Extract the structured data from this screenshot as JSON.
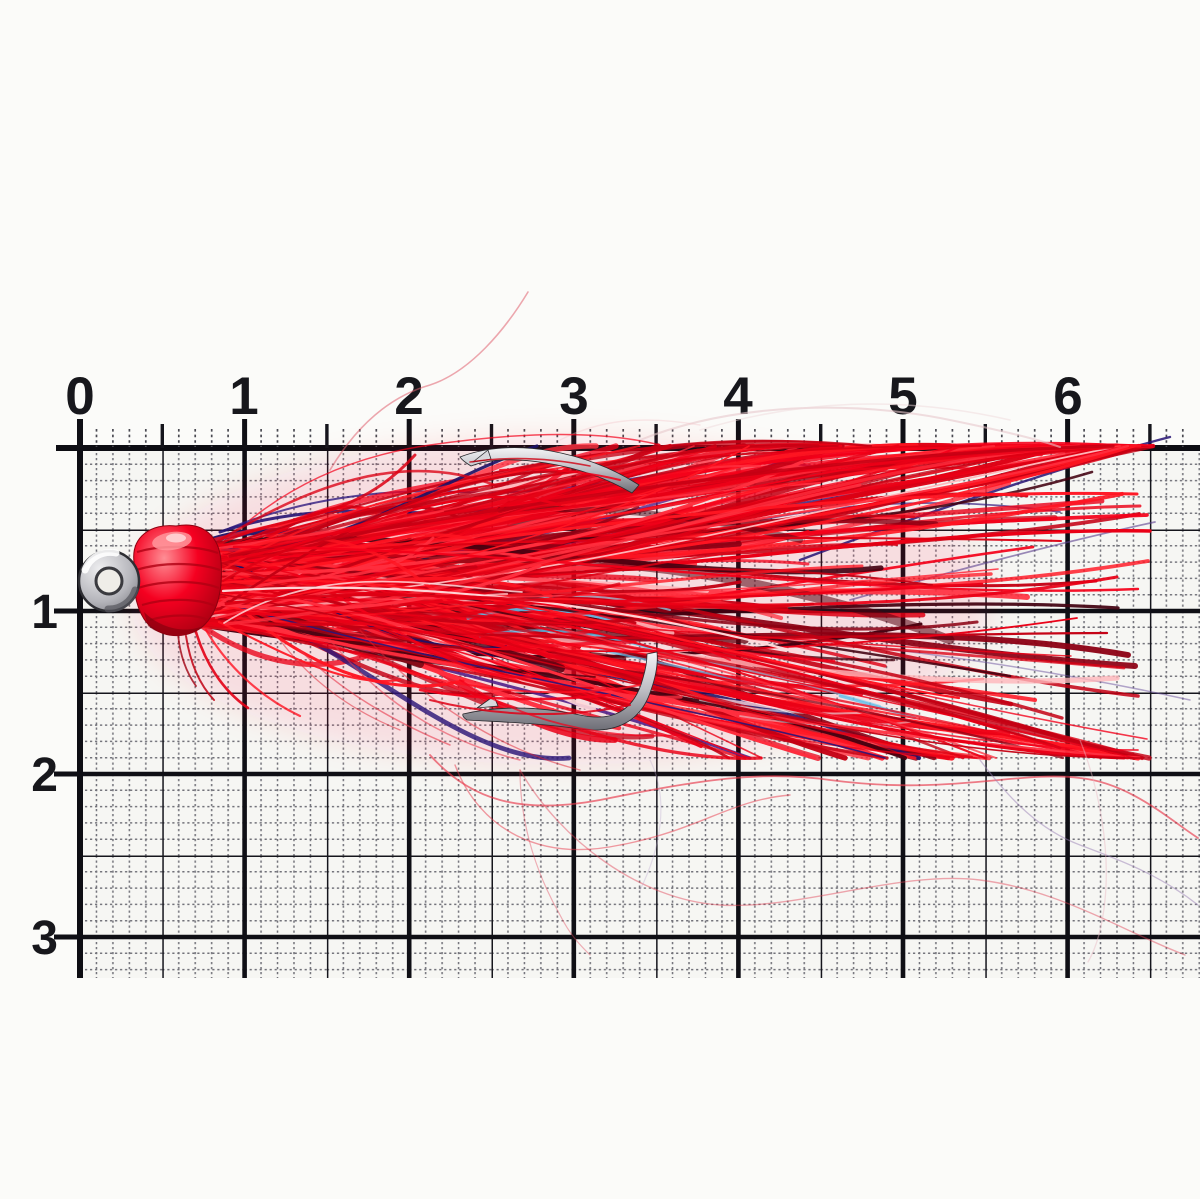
{
  "scene": {
    "description": "Red bucktail dressed treble fishing hook photographed on millimeter graph paper with a centimeter ruler scale",
    "object": "fishing-lure"
  },
  "ruler": {
    "top_labels": [
      "0",
      "1",
      "2",
      "3",
      "4",
      "5",
      "6"
    ],
    "left_labels": [
      "1",
      "2",
      "3"
    ]
  },
  "palette": {
    "paper": "#f6f6f3",
    "paper_margin": "#fbfbf9",
    "grid_major": "#15151c",
    "grid_minor": "#5a5a64",
    "number_ink": "#17171c",
    "fiber_red": "#f40019",
    "fiber_red_dark": "#7c000f",
    "fiber_navy": "#1e1166",
    "fiber_cyan": "#55bbe8",
    "thread_red": "#f2001f",
    "metal_light": "#f2f2f4",
    "metal_dark": "#6e6e76"
  }
}
